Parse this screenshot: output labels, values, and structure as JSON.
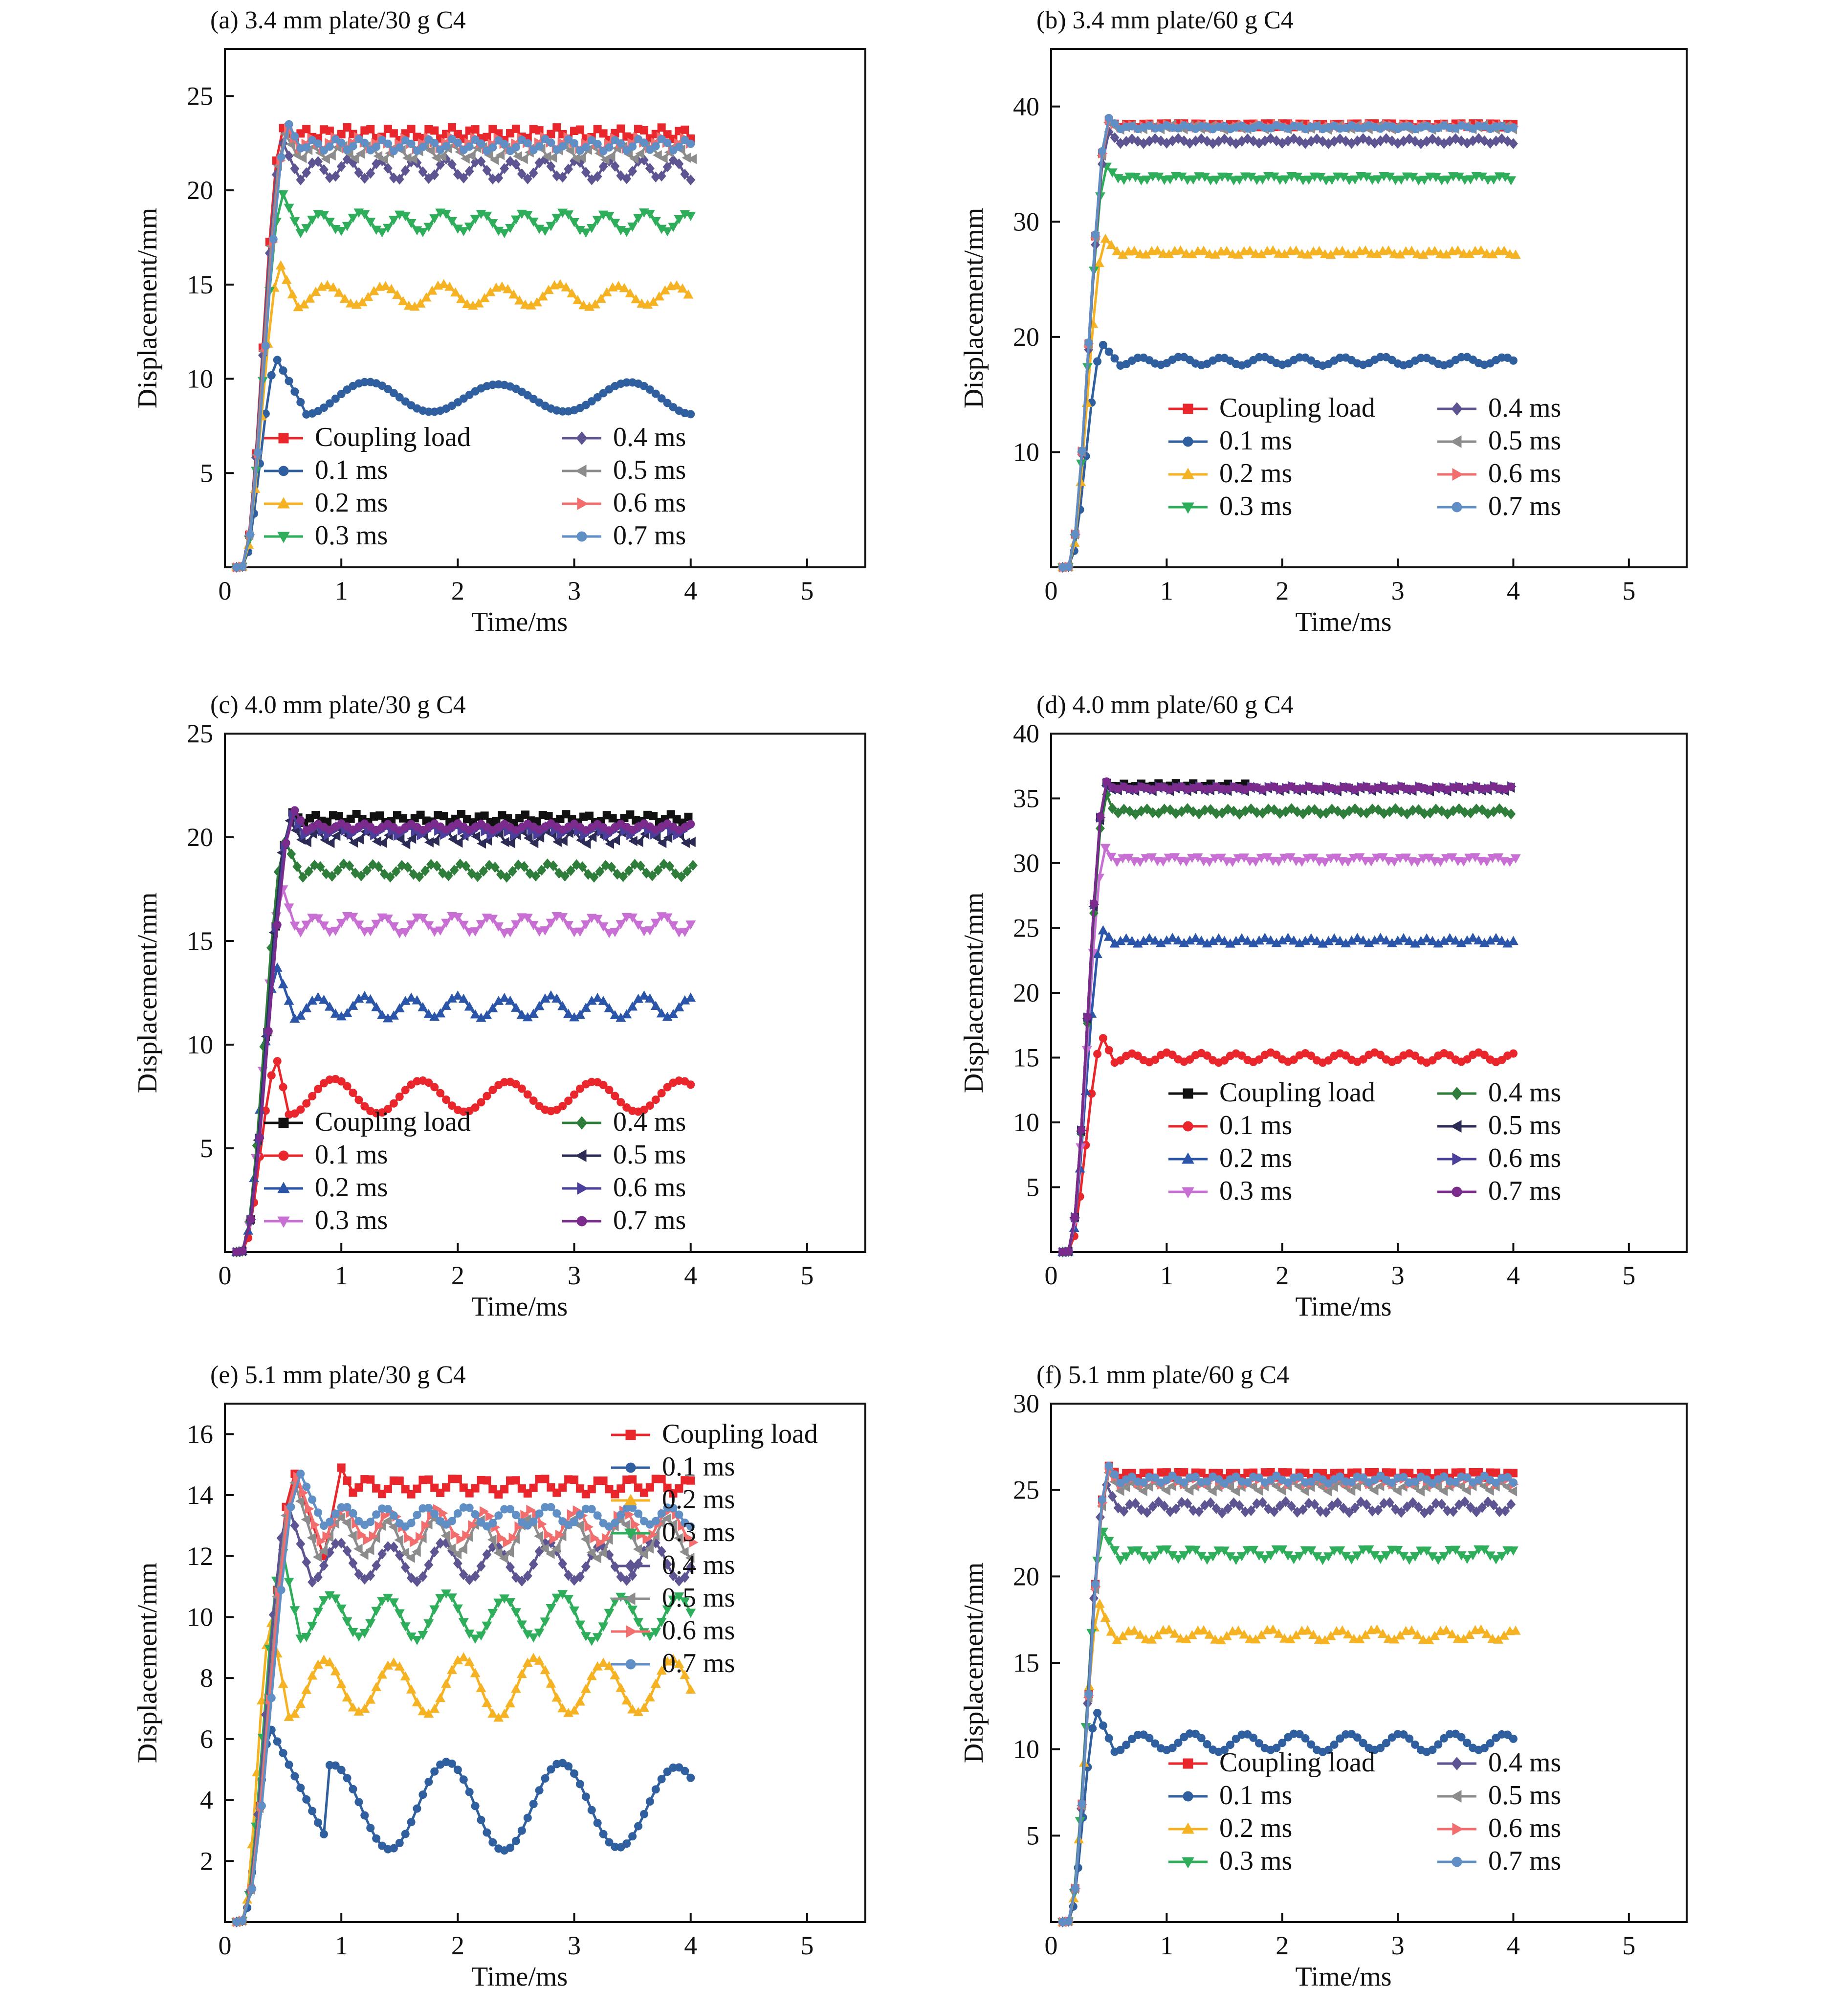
{
  "chart_data": [
    {
      "panel": "a",
      "title": "(a) 3.4 mm plate/30 g C4",
      "type": "line",
      "xlabel": "Time/ms",
      "ylabel": "Displacement/mm",
      "xlim": [
        0,
        5.5
      ],
      "ylim": [
        0,
        27.5
      ],
      "xticks": [
        0,
        1,
        2,
        3,
        4,
        5
      ],
      "yticks": [
        5,
        10,
        15,
        20,
        25
      ],
      "legend": {
        "placement": "lower-left",
        "columns": 2
      },
      "series": [
        {
          "name": "Coupling load",
          "color": "#e8262b",
          "marker": "square",
          "rise": [
            [
              0.5,
              23.3
            ]
          ],
          "level": 23.0,
          "amp": 0.3,
          "period": 0.18,
          "osc_start": 0.6
        },
        {
          "name": "0.1 ms",
          "color": "#2f5f9e",
          "marker": "circle",
          "rise": [
            [
              0.45,
              11.0
            ]
          ],
          "level": 9.0,
          "amp": 0.8,
          "period": 1.1,
          "osc_start": 0.7
        },
        {
          "name": "0.2 ms",
          "color": "#f5b324",
          "marker": "triangle-up",
          "rise": [
            [
              0.48,
              16.0
            ]
          ],
          "level": 14.4,
          "amp": 0.55,
          "period": 0.5,
          "osc_start": 0.62
        },
        {
          "name": "0.3 ms",
          "color": "#2ead5a",
          "marker": "triangle-down",
          "rise": [
            [
              0.5,
              19.8
            ]
          ],
          "level": 18.3,
          "amp": 0.5,
          "period": 0.35,
          "osc_start": 0.64
        },
        {
          "name": "0.4 ms",
          "color": "#5c5591",
          "marker": "diamond",
          "rise": [
            [
              0.5,
              22.5
            ]
          ],
          "level": 21.1,
          "amp": 0.5,
          "period": 0.28,
          "osc_start": 0.64
        },
        {
          "name": "0.5 ms",
          "color": "#8c8c8c",
          "marker": "triangle-left",
          "rise": [
            [
              0.52,
              23.0
            ]
          ],
          "level": 22.0,
          "amp": 0.35,
          "period": 0.24,
          "osc_start": 0.64
        },
        {
          "name": "0.6 ms",
          "color": "#f26d6d",
          "marker": "triangle-right",
          "rise": [
            [
              0.54,
              23.3
            ]
          ],
          "level": 22.5,
          "amp": 0.3,
          "period": 0.2,
          "osc_start": 0.64
        },
        {
          "name": "0.7 ms",
          "color": "#5f8fc4",
          "marker": "circle",
          "rise": [
            [
              0.55,
              23.5
            ]
          ],
          "level": 22.4,
          "amp": 0.3,
          "period": 0.2,
          "osc_start": 0.66
        }
      ]
    },
    {
      "panel": "b",
      "title": "(b) 3.4 mm plate/60 g C4",
      "type": "line",
      "xlabel": "Time/ms",
      "ylabel": "Displacement/mm",
      "xlim": [
        0,
        5.5
      ],
      "ylim": [
        0,
        45
      ],
      "xticks": [
        0,
        1,
        2,
        3,
        4,
        5
      ],
      "yticks": [
        10,
        20,
        30,
        40
      ],
      "legend": {
        "placement": "lower-right",
        "columns": 2
      },
      "series": [
        {
          "name": "Coupling load",
          "color": "#e8262b",
          "marker": "square",
          "rise": [
            [
              0.5,
              38.8
            ]
          ],
          "level": 38.4,
          "amp": 0.2,
          "period": 0.15,
          "osc_start": 0.6
        },
        {
          "name": "0.1 ms",
          "color": "#2f5f9e",
          "marker": "circle",
          "rise": [
            [
              0.45,
              19.3
            ]
          ],
          "level": 17.9,
          "amp": 0.35,
          "period": 0.35,
          "osc_start": 0.6
        },
        {
          "name": "0.2 ms",
          "color": "#f5b324",
          "marker": "triangle-up",
          "rise": [
            [
              0.47,
              28.5
            ]
          ],
          "level": 27.3,
          "amp": 0.2,
          "period": 0.2,
          "osc_start": 0.6
        },
        {
          "name": "0.3 ms",
          "color": "#2ead5a",
          "marker": "triangle-down",
          "rise": [
            [
              0.48,
              34.8
            ]
          ],
          "level": 33.8,
          "amp": 0.2,
          "period": 0.2,
          "osc_start": 0.6
        },
        {
          "name": "0.4 ms",
          "color": "#5c5591",
          "marker": "diamond",
          "rise": [
            [
              0.5,
              37.8
            ]
          ],
          "level": 37.0,
          "amp": 0.2,
          "period": 0.2,
          "osc_start": 0.6
        },
        {
          "name": "0.5 ms",
          "color": "#8c8c8c",
          "marker": "triangle-left",
          "rise": [
            [
              0.5,
              38.6
            ]
          ],
          "level": 38.2,
          "amp": 0.2,
          "period": 0.18,
          "osc_start": 0.6
        },
        {
          "name": "0.6 ms",
          "color": "#f26d6d",
          "marker": "triangle-right",
          "rise": [
            [
              0.5,
              38.8
            ]
          ],
          "level": 38.3,
          "amp": 0.15,
          "period": 0.16,
          "osc_start": 0.6
        },
        {
          "name": "0.7 ms",
          "color": "#5f8fc4",
          "marker": "circle",
          "rise": [
            [
              0.5,
              39.0
            ]
          ],
          "level": 38.2,
          "amp": 0.15,
          "period": 0.16,
          "osc_start": 0.6
        }
      ]
    },
    {
      "panel": "c",
      "title": "(c) 4.0 mm plate/30 g C4",
      "type": "line",
      "xlabel": "Time/ms",
      "ylabel": "Displacement/mm",
      "xlim": [
        0,
        5.5
      ],
      "ylim": [
        0,
        25
      ],
      "xticks": [
        0,
        1,
        2,
        3,
        4,
        5
      ],
      "yticks": [
        5,
        10,
        15,
        20,
        25
      ],
      "legend": {
        "placement": "lower-left",
        "columns": 2
      },
      "series": [
        {
          "name": "Coupling load",
          "color": "#111111",
          "marker": "square",
          "rise": [
            [
              0.58,
              21.2
            ]
          ],
          "level": 20.9,
          "amp": 0.2,
          "period": 0.18,
          "osc_start": 0.68
        },
        {
          "name": "0.1 ms",
          "color": "#e8262b",
          "marker": "circle",
          "rise": [
            [
              0.45,
              9.2
            ]
          ],
          "level": 7.5,
          "amp": 0.8,
          "period": 0.75,
          "osc_start": 0.55
        },
        {
          "name": "0.2 ms",
          "color": "#2a55a8",
          "marker": "triangle-up",
          "rise": [
            [
              0.45,
              13.7
            ]
          ],
          "level": 11.8,
          "amp": 0.5,
          "period": 0.4,
          "osc_start": 0.6
        },
        {
          "name": "0.3 ms",
          "color": "#c86fd4",
          "marker": "triangle-down",
          "rise": [
            [
              0.5,
              17.5
            ]
          ],
          "level": 15.8,
          "amp": 0.4,
          "period": 0.3,
          "osc_start": 0.62
        },
        {
          "name": "0.4 ms",
          "color": "#2f7d3a",
          "marker": "diamond",
          "rise": [
            [
              0.52,
              19.8
            ]
          ],
          "level": 18.4,
          "amp": 0.3,
          "period": 0.25,
          "osc_start": 0.66
        },
        {
          "name": "0.5 ms",
          "color": "#2b2b55",
          "marker": "triangle-left",
          "rise": [
            [
              0.56,
              20.8
            ]
          ],
          "level": 20.0,
          "amp": 0.3,
          "period": 0.22,
          "osc_start": 0.68
        },
        {
          "name": "0.6 ms",
          "color": "#4a3f9a",
          "marker": "triangle-right",
          "rise": [
            [
              0.58,
              21.1
            ]
          ],
          "level": 20.3,
          "amp": 0.2,
          "period": 0.2,
          "osc_start": 0.68
        },
        {
          "name": "0.7 ms",
          "color": "#7a2b8c",
          "marker": "circle",
          "rise": [
            [
              0.6,
              21.3
            ]
          ],
          "level": 20.5,
          "amp": 0.15,
          "period": 0.2,
          "osc_start": 0.7
        }
      ]
    },
    {
      "panel": "d",
      "title": "(d) 4.0 mm plate/60 g C4",
      "type": "line",
      "xlabel": "Time/ms",
      "ylabel": "Displacement/mm",
      "xlim": [
        0,
        5.5
      ],
      "ylim": [
        0,
        40
      ],
      "xticks": [
        0,
        1,
        2,
        3,
        4,
        5
      ],
      "yticks": [
        5,
        10,
        15,
        20,
        25,
        30,
        35,
        40
      ],
      "legend": {
        "placement": "lower-right",
        "columns": 2
      },
      "series": [
        {
          "name": "Coupling load",
          "color": "#111111",
          "marker": "square",
          "rise": [
            [
              0.48,
              36.2
            ]
          ],
          "level": 36.0,
          "amp": 0.15,
          "period": 0.15,
          "osc_start": 0.55,
          "end": 1.7
        },
        {
          "name": "0.1 ms",
          "color": "#e8262b",
          "marker": "circle",
          "rise": [
            [
              0.45,
              16.5
            ]
          ],
          "level": 15.0,
          "amp": 0.35,
          "period": 0.3,
          "osc_start": 0.55
        },
        {
          "name": "0.2 ms",
          "color": "#2a55a8",
          "marker": "triangle-up",
          "rise": [
            [
              0.45,
              24.8
            ]
          ],
          "level": 24.0,
          "amp": 0.2,
          "period": 0.2,
          "osc_start": 0.55
        },
        {
          "name": "0.3 ms",
          "color": "#c86fd4",
          "marker": "triangle-down",
          "rise": [
            [
              0.47,
              31.2
            ]
          ],
          "level": 30.3,
          "amp": 0.2,
          "period": 0.2,
          "osc_start": 0.55
        },
        {
          "name": "0.4 ms",
          "color": "#2f7d3a",
          "marker": "diamond",
          "rise": [
            [
              0.48,
              35.3
            ]
          ],
          "level": 34.0,
          "amp": 0.2,
          "period": 0.18,
          "osc_start": 0.55
        },
        {
          "name": "0.5 ms",
          "color": "#2b2b55",
          "marker": "triangle-left",
          "rise": [
            [
              0.48,
              36.0
            ]
          ],
          "level": 35.7,
          "amp": 0.15,
          "period": 0.16,
          "osc_start": 0.55
        },
        {
          "name": "0.6 ms",
          "color": "#4a3f9a",
          "marker": "triangle-right",
          "rise": [
            [
              0.48,
              36.2
            ]
          ],
          "level": 35.8,
          "amp": 0.15,
          "period": 0.16,
          "osc_start": 0.55
        },
        {
          "name": "0.7 ms",
          "color": "#7a2b8c",
          "marker": "circle",
          "rise": [
            [
              0.48,
              36.3
            ]
          ],
          "level": 35.8,
          "amp": 0.12,
          "period": 0.16,
          "osc_start": 0.55
        }
      ]
    },
    {
      "panel": "e",
      "title": "(e) 5.1 mm plate/30 g C4",
      "type": "line",
      "xlabel": "Time/ms",
      "ylabel": "Displacement/mm",
      "xlim": [
        0,
        5.5
      ],
      "ylim": [
        0,
        17
      ],
      "xticks": [
        0,
        1,
        2,
        3,
        4,
        5
      ],
      "yticks": [
        2,
        4,
        6,
        8,
        10,
        12,
        14,
        16
      ],
      "legend": {
        "placement": "upper-right",
        "columns": 1
      },
      "series": [
        {
          "name": "Coupling load",
          "color": "#e8262b",
          "marker": "square",
          "rise": [
            [
              0.6,
              14.7
            ],
            [
              0.85,
              12.0
            ],
            [
              1.0,
              14.9
            ]
          ],
          "level": 14.3,
          "amp": 0.25,
          "period": 0.25,
          "osc_start": 1.1
        },
        {
          "name": "0.1 ms",
          "color": "#2f5f9e",
          "marker": "circle",
          "rise": [
            [
              0.4,
              6.3
            ]
          ],
          "level": 3.8,
          "amp": 1.3,
          "period": 1.0,
          "osc_start": 0.9,
          "phase": 3.14
        },
        {
          "name": "0.2 ms",
          "color": "#f5b324",
          "marker": "triangle-up",
          "rise": [
            [
              0.4,
              9.8
            ]
          ],
          "level": 7.7,
          "amp": 0.9,
          "period": 0.6,
          "osc_start": 0.55
        },
        {
          "name": "0.3 ms",
          "color": "#2ead5a",
          "marker": "triangle-down",
          "rise": [
            [
              0.5,
              12.1
            ]
          ],
          "level": 10.0,
          "amp": 0.7,
          "period": 0.5,
          "osc_start": 0.65
        },
        {
          "name": "0.4 ms",
          "color": "#5c5591",
          "marker": "diamond",
          "rise": [
            [
              0.55,
              13.6
            ]
          ],
          "level": 11.8,
          "amp": 0.6,
          "period": 0.45,
          "osc_start": 0.75
        },
        {
          "name": "0.5 ms",
          "color": "#8c8c8c",
          "marker": "triangle-left",
          "rise": [
            [
              0.6,
              14.4
            ]
          ],
          "level": 12.6,
          "amp": 0.6,
          "period": 0.4,
          "osc_start": 0.8
        },
        {
          "name": "0.6 ms",
          "color": "#f26d6d",
          "marker": "triangle-right",
          "rise": [
            [
              0.62,
              14.6
            ]
          ],
          "level": 13.0,
          "amp": 0.5,
          "period": 0.4,
          "osc_start": 0.82
        },
        {
          "name": "0.7 ms",
          "color": "#5f8fc4",
          "marker": "circle",
          "rise": [
            [
              0.65,
              14.7
            ]
          ],
          "level": 13.3,
          "amp": 0.3,
          "period": 0.35,
          "osc_start": 0.85
        }
      ]
    },
    {
      "panel": "f",
      "title": "(f) 5.1 mm plate/60 g C4",
      "type": "line",
      "xlabel": "Time/ms",
      "ylabel": "Displacement/mm",
      "xlim": [
        0,
        5.5
      ],
      "ylim": [
        0,
        30
      ],
      "xticks": [
        0,
        1,
        2,
        3,
        4,
        5
      ],
      "yticks": [
        5,
        10,
        15,
        20,
        25,
        30
      ],
      "legend": {
        "placement": "lower-right",
        "columns": 2
      },
      "series": [
        {
          "name": "Coupling load",
          "color": "#e8262b",
          "marker": "square",
          "rise": [
            [
              0.5,
              26.4
            ]
          ],
          "level": 25.9,
          "amp": 0.2,
          "period": 0.15,
          "osc_start": 0.6
        },
        {
          "name": "0.1 ms",
          "color": "#2f5f9e",
          "marker": "circle",
          "rise": [
            [
              0.4,
              12.1
            ]
          ],
          "level": 10.4,
          "amp": 0.5,
          "period": 0.45,
          "osc_start": 0.55
        },
        {
          "name": "0.2 ms",
          "color": "#f5b324",
          "marker": "triangle-up",
          "rise": [
            [
              0.42,
              18.4
            ]
          ],
          "level": 16.6,
          "amp": 0.3,
          "period": 0.3,
          "osc_start": 0.55
        },
        {
          "name": "0.3 ms",
          "color": "#2ead5a",
          "marker": "triangle-down",
          "rise": [
            [
              0.45,
              22.6
            ]
          ],
          "level": 21.3,
          "amp": 0.3,
          "period": 0.25,
          "osc_start": 0.6
        },
        {
          "name": "0.4 ms",
          "color": "#5c5591",
          "marker": "diamond",
          "rise": [
            [
              0.48,
              25.3
            ]
          ],
          "level": 24.0,
          "amp": 0.3,
          "period": 0.22,
          "osc_start": 0.6
        },
        {
          "name": "0.5 ms",
          "color": "#8c8c8c",
          "marker": "triangle-left",
          "rise": [
            [
              0.5,
              26.0
            ]
          ],
          "level": 25.2,
          "amp": 0.25,
          "period": 0.2,
          "osc_start": 0.6
        },
        {
          "name": "0.6 ms",
          "color": "#f26d6d",
          "marker": "triangle-right",
          "rise": [
            [
              0.5,
              26.2
            ]
          ],
          "level": 25.5,
          "amp": 0.2,
          "period": 0.18,
          "osc_start": 0.6
        },
        {
          "name": "0.7 ms",
          "color": "#5f8fc4",
          "marker": "circle",
          "rise": [
            [
              0.5,
              26.4
            ]
          ],
          "level": 25.6,
          "amp": 0.2,
          "period": 0.18,
          "osc_start": 0.6
        }
      ]
    }
  ]
}
